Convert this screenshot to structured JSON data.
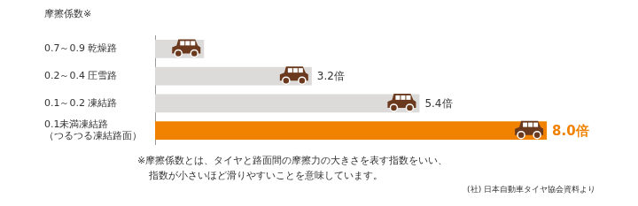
{
  "chart_data": {
    "type": "bar",
    "orientation": "horizontal",
    "title": "摩擦係数※",
    "categories": [
      "0.7～0.9 乾燥路",
      "0.2～0.4 圧雪路",
      "0.1～0.2 凍結路",
      "0.1未満凍結路\n（つるつる凍結路面）"
    ],
    "values": [
      1,
      3.2,
      5.4,
      8.0
    ],
    "value_labels": [
      null,
      "3.2倍",
      "5.4倍",
      "8.0倍"
    ],
    "colors": [
      "#dcdbd9",
      "#dcdbd9",
      "#dcdbd9",
      "#f08200"
    ],
    "data_labels": true,
    "xlim": [
      0,
      9.5
    ],
    "tick_labels": "y",
    "grid": false,
    "annotations": [
      "※摩擦係数とは、タイヤと路面間の摩擦力の大きさを表す指数をいい、",
      "指数が小さいほど滑りやすいことを意味しています。",
      "(社) 日本自動車タイヤ協会資料より"
    ]
  }
}
